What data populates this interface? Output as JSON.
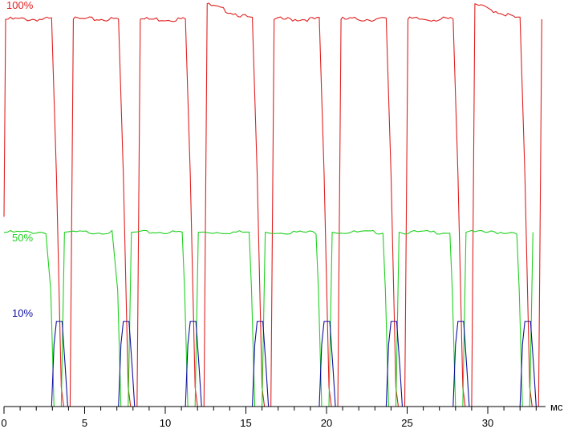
{
  "chart_data": {
    "type": "line",
    "title": "",
    "xlabel": "",
    "ylabel": "",
    "x_unit": "мс",
    "xlim": [
      0,
      34
    ],
    "ylim": [
      0,
      100
    ],
    "x_ticks": [
      0,
      5,
      10,
      15,
      20,
      25,
      30
    ],
    "grid": false,
    "legend": "inline labels near left edge",
    "period_ms": 4.15,
    "series": [
      {
        "name": "100%",
        "color": "#e02020",
        "high": 100,
        "high_overshoot": 104,
        "low": 0
      },
      {
        "name": "50%",
        "color": "#20d020",
        "high": 45,
        "low": 0
      },
      {
        "name": "10%",
        "color": "#1010a0",
        "high": 22,
        "low": 0
      }
    ]
  }
}
